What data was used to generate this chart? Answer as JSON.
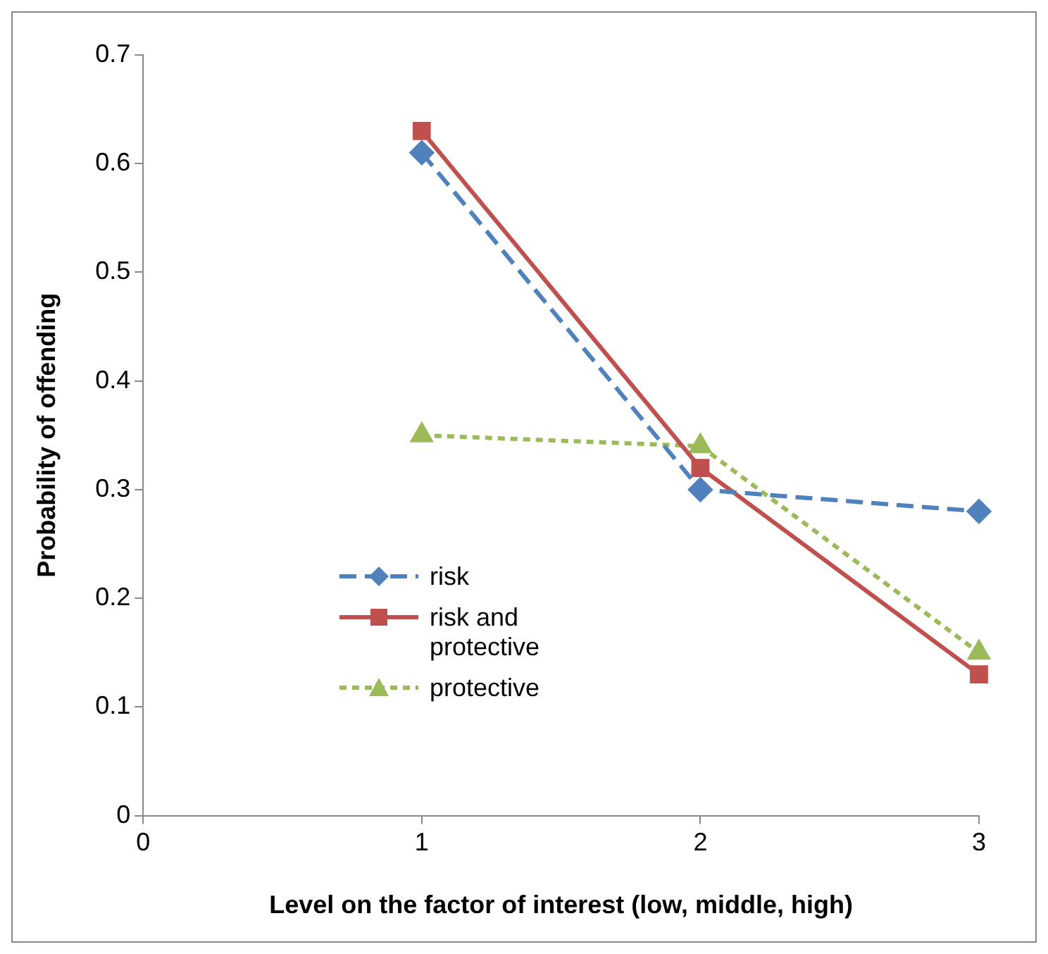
{
  "chart_data": {
    "type": "line",
    "xlabel": "Level on the factor of interest (low, middle, high)",
    "ylabel": "Probability of offending",
    "x": [
      1,
      2,
      3
    ],
    "xlim": [
      0,
      3
    ],
    "xticks": [
      0,
      1,
      2,
      3
    ],
    "ylim": [
      0,
      0.7
    ],
    "yticks": [
      0,
      0.1,
      0.2,
      0.3,
      0.4,
      0.5,
      0.6,
      0.7
    ],
    "grid": false,
    "legend": "left",
    "series": [
      {
        "name": "risk",
        "color": "#4f81bd",
        "values": [
          0.61,
          0.3,
          0.28
        ],
        "marker": "diamond",
        "line_style": "dashed"
      },
      {
        "name": "risk and protective",
        "color": "#c0504d",
        "values": [
          0.63,
          0.32,
          0.13
        ],
        "marker": "square",
        "line_style": "solid"
      },
      {
        "name": "protective",
        "color": "#9bbb59",
        "values": [
          0.35,
          0.34,
          0.15
        ],
        "marker": "triangle",
        "line_style": "dotted"
      }
    ]
  }
}
